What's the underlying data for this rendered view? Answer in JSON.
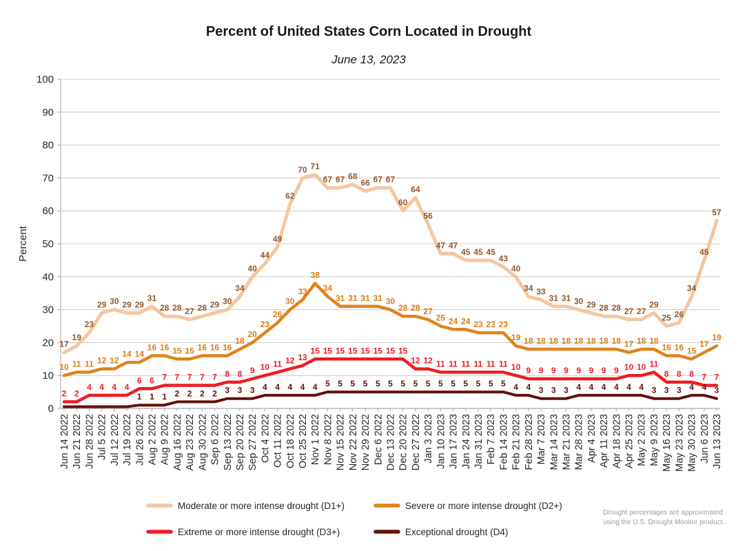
{
  "note": {
    "line1": "Drought percentages are approximated",
    "line2": "using the U.S. Drought Monitor product."
  },
  "style": {
    "background": "#ffffff",
    "grid_color": "#c8c8c8",
    "axis_color": "#a6a6a6",
    "text_color": "#262626",
    "note_color": "#9b9b9b"
  },
  "chart_data": {
    "type": "line",
    "title": "Percent of United States Corn Located in Drought",
    "subtitle": "June 13, 2023",
    "xlabel": "",
    "ylabel": "Percent",
    "ylim": [
      0,
      100
    ],
    "yticks": [
      0,
      10,
      20,
      30,
      40,
      50,
      60,
      70,
      80,
      90,
      100
    ],
    "grid": true,
    "legend_position": "bottom",
    "categories": [
      "Jun 14 2022",
      "Jun 21 2022",
      "Jun 28 2022",
      "Jul 5 2022",
      "Jul 12 2022",
      "Jul 19 2022",
      "Jul 26 2022",
      "Aug 2 2022",
      "Aug 9 2022",
      "Aug 16 2022",
      "Aug 23 2022",
      "Aug 30 2022",
      "Sep 6 2022",
      "Sep 13 2022",
      "Sep 20 2022",
      "Sep 27 2022",
      "Oct 4 2022",
      "Oct 11 2022",
      "Oct 18 2022",
      "Oct 25 2022",
      "Nov 1 2022",
      "Nov 8 2022",
      "Nov 15 2022",
      "Nov 22 2022",
      "Nov 29 2022",
      "Dec 6 2022",
      "Dec 13 2022",
      "Dec 20 2022",
      "Dec 27 2022",
      "Jan 3 2023",
      "Jan 10 2023",
      "Jan 17 2023",
      "Jan 24 2023",
      "Jan 31 2023",
      "Feb 7 2023",
      "Feb 14 2023",
      "Feb 21 2023",
      "Feb 28 2023",
      "Mar 7 2023",
      "Mar 14 2023",
      "Mar 21 2023",
      "Mar 28 2023",
      "Apr 4 2023",
      "Apr 11 2023",
      "Apr 18 2023",
      "Apr 25 2023",
      "May 2 2023",
      "May 9 2023",
      "May 16 2023",
      "May 23 2023",
      "May 30 2023",
      "Jun 6 2023",
      "Jun 13 2023"
    ],
    "series": [
      {
        "tag": "D1+",
        "name": "Moderate or more intense drought (D1+)",
        "color": "#f3c7a0",
        "label_color": "#96572c",
        "line_width": 5,
        "values": [
          17,
          19,
          23,
          29,
          30,
          29,
          29,
          31,
          28,
          28,
          27,
          28,
          29,
          30,
          34,
          40,
          44,
          49,
          62,
          70,
          71,
          67,
          67,
          68,
          66,
          67,
          67,
          60,
          64,
          56,
          47,
          47,
          45,
          45,
          45,
          43,
          40,
          34,
          33,
          31,
          31,
          30,
          29,
          28,
          28,
          27,
          27,
          29,
          25,
          26,
          34,
          45,
          57
        ]
      },
      {
        "tag": "D2+",
        "name": "Severe or more intense drought (D2+)",
        "color": "#e0821e",
        "label_color": "#dd7c14",
        "line_width": 4.5,
        "values": [
          10,
          11,
          11,
          12,
          12,
          14,
          14,
          16,
          16,
          15,
          15,
          16,
          16,
          16,
          18,
          20,
          23,
          26,
          30,
          33,
          38,
          34,
          31,
          31,
          31,
          31,
          30,
          28,
          28,
          27,
          25,
          24,
          24,
          23,
          23,
          23,
          19,
          18,
          18,
          18,
          18,
          18,
          18,
          18,
          18,
          17,
          18,
          18,
          16,
          16,
          15,
          17,
          19
        ]
      },
      {
        "tag": "D3+",
        "name": "Extreme or more intense drought (D3+)",
        "color": "#ee1c24",
        "label_color": "#ee1c24",
        "line_width": 4.5,
        "values": [
          2,
          2,
          4,
          4,
          4,
          4,
          6,
          6,
          7,
          7,
          7,
          7,
          7,
          8,
          8,
          9,
          10,
          11,
          12,
          13,
          15,
          15,
          15,
          15,
          15,
          15,
          15,
          15,
          12,
          12,
          11,
          11,
          11,
          11,
          11,
          11,
          10,
          9,
          9,
          9,
          9,
          9,
          9,
          9,
          9,
          10,
          10,
          11,
          8,
          8,
          8,
          7,
          7
        ]
      },
      {
        "tag": "D4",
        "name": "Exceptional drought (D4)",
        "color": "#631108",
        "label_color": "#631108",
        "line_width": 4,
        "values": [
          0,
          0,
          0,
          0,
          0,
          0,
          1,
          1,
          1,
          2,
          2,
          2,
          2,
          3,
          3,
          3,
          4,
          4,
          4,
          4,
          4,
          5,
          5,
          5,
          5,
          5,
          5,
          5,
          5,
          5,
          5,
          5,
          5,
          5,
          5,
          5,
          4,
          4,
          3,
          3,
          3,
          4,
          4,
          4,
          4,
          4,
          4,
          3,
          3,
          3,
          4,
          4,
          3
        ]
      }
    ]
  }
}
